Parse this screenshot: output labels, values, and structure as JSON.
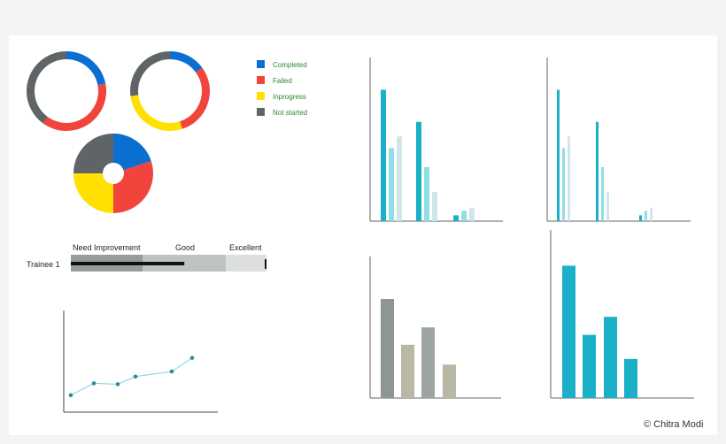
{
  "colors": {
    "completed": "#0b6fd2",
    "failed": "#f0443c",
    "inprogress": "#ffe000",
    "not_started": "#5f6466",
    "teal": "#1ab1c8",
    "teal_light": "#8fdee6",
    "teal_pale": "#cfe6ea",
    "gray_dark": "#8e9694",
    "gray_tan": "#b8b8a4",
    "gray_mid": "#9ea49f"
  },
  "legend": [
    {
      "label": "Completed",
      "color": "#0b6fd2"
    },
    {
      "label": "Failed",
      "color": "#f0443c"
    },
    {
      "label": "Inprogress",
      "color": "#ffe000"
    },
    {
      "label": "Not started",
      "color": "#5f6466"
    }
  ],
  "performance": {
    "bands": [
      "Need Improvement",
      "Good",
      "Excellent"
    ],
    "row_label": "Trainee 1",
    "value": 0.58
  },
  "credit": "© Chitra Modi",
  "chart_data": [
    {
      "type": "pie",
      "variant": "donut",
      "slices": [
        {
          "label": "Completed",
          "value": 22
        },
        {
          "label": "Failed",
          "value": 38
        },
        {
          "label": "Not started",
          "value": 40
        }
      ]
    },
    {
      "type": "pie",
      "variant": "donut",
      "slices": [
        {
          "label": "Completed",
          "value": 15
        },
        {
          "label": "Failed",
          "value": 30
        },
        {
          "label": "Inprogress",
          "value": 28
        },
        {
          "label": "Not started",
          "value": 27
        }
      ]
    },
    {
      "type": "pie",
      "variant": "donut-thick",
      "slices": [
        {
          "label": "Completed",
          "value": 20
        },
        {
          "label": "Failed",
          "value": 30
        },
        {
          "label": "Inprogress",
          "value": 25
        },
        {
          "label": "Not started",
          "value": 25
        }
      ]
    },
    {
      "type": "line",
      "x": [
        1,
        2,
        3,
        4,
        5,
        6
      ],
      "y": [
        10,
        17,
        16.5,
        21,
        24,
        32
      ],
      "ylim": [
        0,
        60
      ]
    },
    {
      "type": "bar",
      "groups": [
        {
          "values": [
            90,
            50,
            58
          ]
        },
        {
          "values": [
            68,
            37,
            20
          ]
        },
        {
          "values": [
            4,
            7,
            9
          ]
        }
      ],
      "ylim": [
        0,
        100
      ]
    },
    {
      "type": "bar",
      "groups": [
        {
          "values": [
            90,
            50,
            58
          ]
        },
        {
          "values": [
            68,
            37,
            20
          ]
        },
        {
          "values": [
            4,
            7,
            9
          ]
        }
      ],
      "ylim": [
        0,
        100
      ]
    },
    {
      "type": "bar",
      "values": [
        80,
        43,
        57,
        27
      ],
      "ylim": [
        0,
        100
      ]
    },
    {
      "type": "bar",
      "values": [
        88,
        42,
        54,
        26
      ],
      "ylim": [
        0,
        100
      ]
    }
  ]
}
